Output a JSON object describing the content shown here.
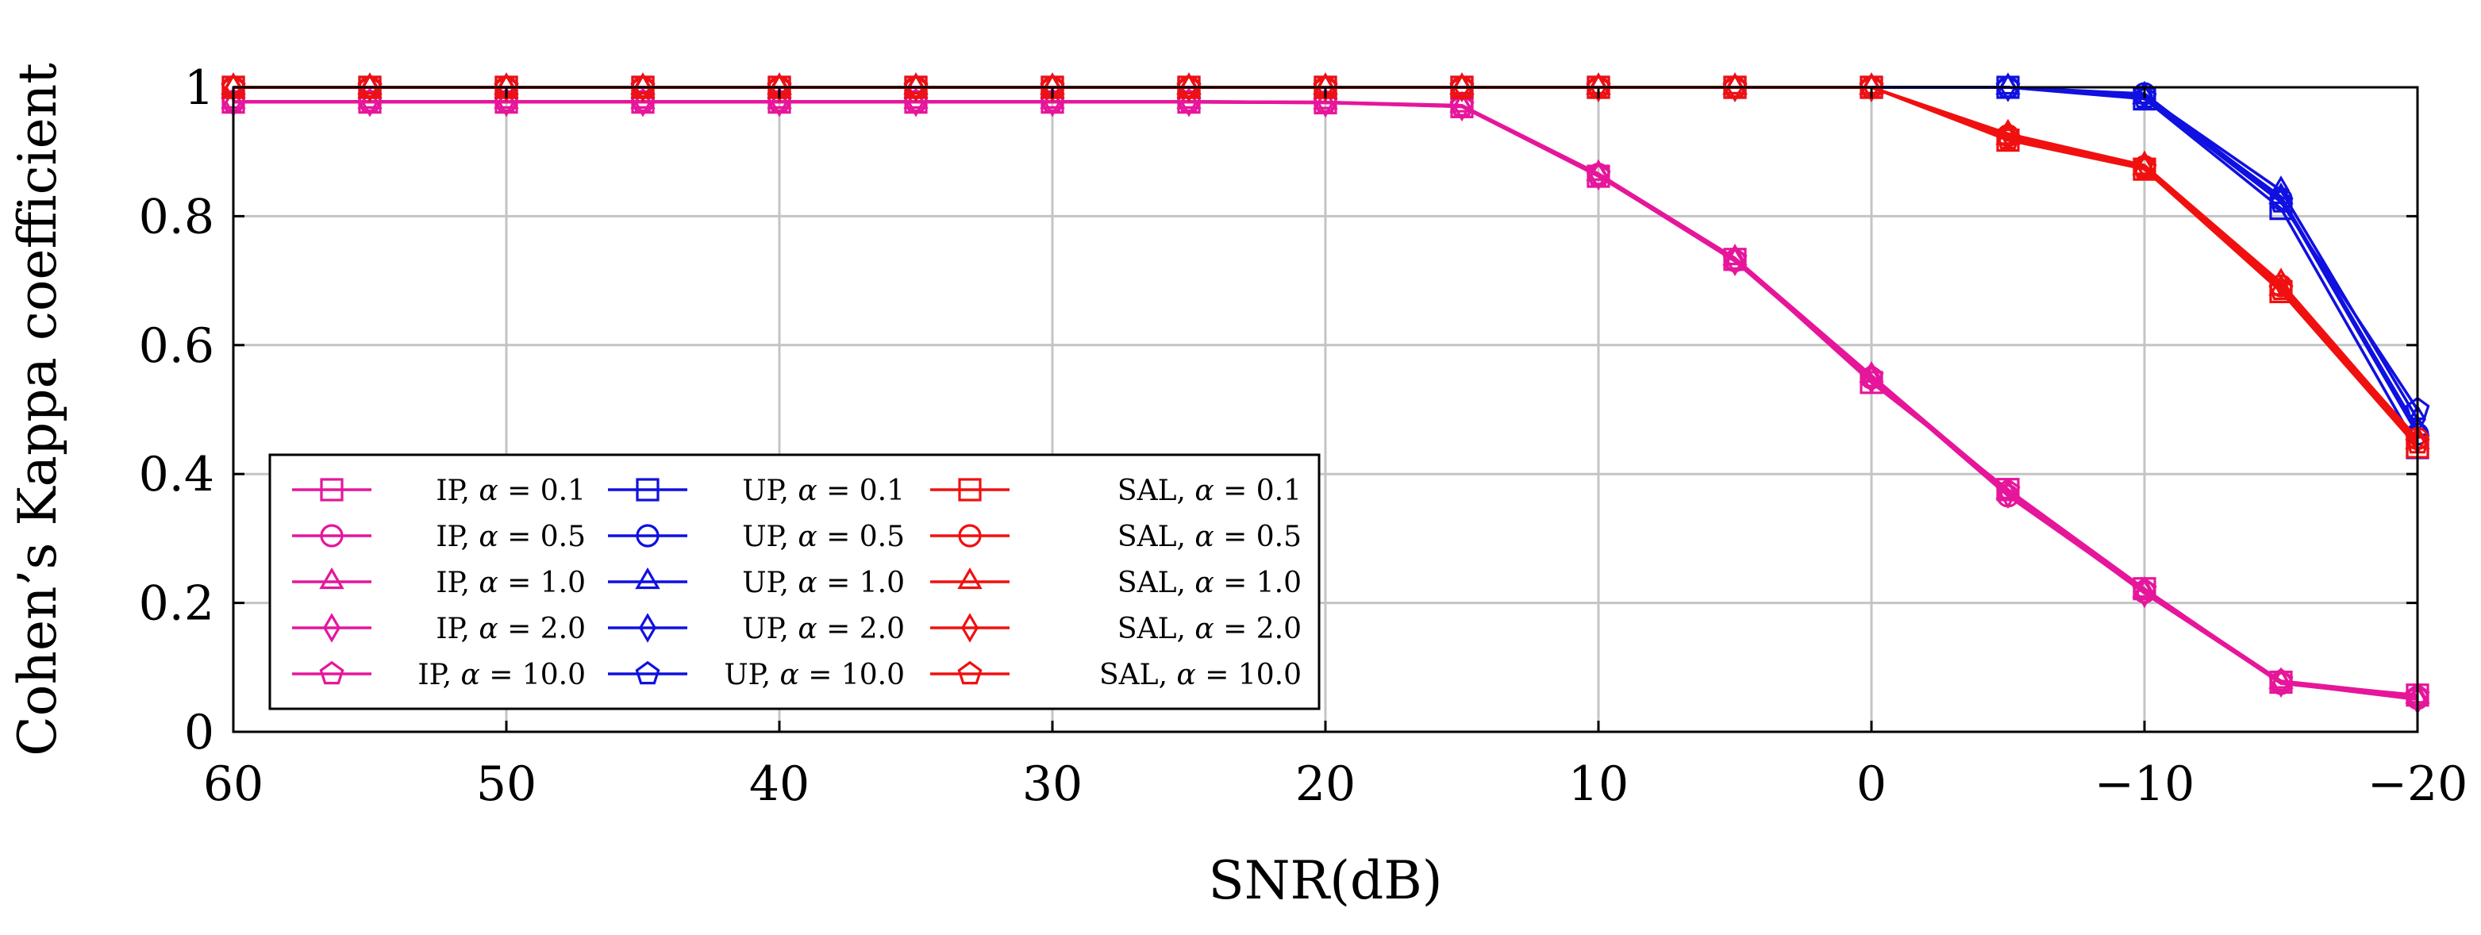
{
  "chart_data": {
    "type": "line",
    "title": "",
    "xlabel": "SNR(dB)",
    "ylabel": "Cohen’s Kappa coefficient",
    "xlim": [
      60,
      -20
    ],
    "ylim": [
      0,
      1
    ],
    "grid": true,
    "legend_position": "bottom-left",
    "x": [
      60,
      55,
      50,
      45,
      40,
      35,
      30,
      25,
      20,
      15,
      10,
      5,
      0,
      -5,
      -10,
      -15,
      -20
    ],
    "x_ticks": [
      60,
      50,
      40,
      30,
      20,
      10,
      0,
      -10,
      -20
    ],
    "x_tick_labels": [
      "60",
      "50",
      "40",
      "30",
      "20",
      "10",
      "0",
      "−10",
      "−20"
    ],
    "y_ticks": [
      0,
      0.2,
      0.4,
      0.6,
      0.8,
      1
    ],
    "y_tick_labels": [
      "0",
      "0.2",
      "0.4",
      "0.6",
      "0.8",
      "1"
    ],
    "colors": {
      "IP": "#e6169b",
      "UP": "#1010e0",
      "SAL": "#f01010"
    },
    "series": [
      {
        "group": "IP",
        "marker": "square",
        "alpha": "0.1",
        "name_prefix": "IP, ",
        "name_symbol": "α",
        "name_suffix": " = 0.1",
        "values": [
          0.977,
          0.977,
          0.977,
          0.977,
          0.977,
          0.977,
          0.977,
          0.977,
          0.976,
          0.97,
          0.862,
          0.733,
          0.542,
          0.376,
          0.222,
          0.077,
          0.057
        ]
      },
      {
        "group": "IP",
        "marker": "circle",
        "alpha": "0.5",
        "name_prefix": "IP, ",
        "name_symbol": "α",
        "name_suffix": " = 0.5",
        "values": [
          0.978,
          0.978,
          0.978,
          0.978,
          0.978,
          0.978,
          0.978,
          0.978,
          0.977,
          0.971,
          0.865,
          0.731,
          0.549,
          0.366,
          0.217,
          0.075,
          0.052
        ]
      },
      {
        "group": "IP",
        "marker": "triangle",
        "alpha": "1.0",
        "name_prefix": "IP, ",
        "name_symbol": "α",
        "name_suffix": " = 1.0",
        "values": [
          0.978,
          0.978,
          0.978,
          0.978,
          0.978,
          0.978,
          0.978,
          0.978,
          0.977,
          0.972,
          0.866,
          0.735,
          0.553,
          0.372,
          0.219,
          0.078,
          0.055
        ]
      },
      {
        "group": "IP",
        "marker": "diamond",
        "alpha": "2.0",
        "name_prefix": "IP, ",
        "name_symbol": "α",
        "name_suffix": " = 2.0",
        "values": [
          0.977,
          0.977,
          0.977,
          0.977,
          0.977,
          0.977,
          0.977,
          0.977,
          0.976,
          0.97,
          0.863,
          0.73,
          0.547,
          0.369,
          0.215,
          0.076,
          0.05
        ]
      },
      {
        "group": "IP",
        "marker": "pentagon",
        "alpha": "10.0",
        "name_prefix": "IP, ",
        "name_symbol": "α",
        "name_suffix": " = 10.0",
        "values": [
          0.978,
          0.978,
          0.978,
          0.978,
          0.978,
          0.978,
          0.978,
          0.978,
          0.977,
          0.971,
          0.864,
          0.733,
          0.551,
          0.374,
          0.22,
          0.079,
          0.056
        ]
      },
      {
        "group": "UP",
        "marker": "square",
        "alpha": "0.1",
        "name_prefix": "UP, ",
        "name_symbol": "α",
        "name_suffix": " = 0.1",
        "values": [
          1,
          1,
          1,
          1,
          1,
          1,
          1,
          1,
          1,
          1,
          1,
          1,
          1,
          1,
          0.982,
          0.812,
          0.441
        ]
      },
      {
        "group": "UP",
        "marker": "circle",
        "alpha": "0.5",
        "name_prefix": "UP, ",
        "name_symbol": "α",
        "name_suffix": " = 0.5",
        "values": [
          1,
          1,
          1,
          1,
          1,
          1,
          1,
          1,
          1,
          1,
          1,
          1,
          1,
          1,
          0.99,
          0.827,
          0.462
        ]
      },
      {
        "group": "UP",
        "marker": "triangle",
        "alpha": "1.0",
        "name_prefix": "UP, ",
        "name_symbol": "α",
        "name_suffix": " = 1.0",
        "values": [
          1,
          1,
          1,
          1,
          1,
          1,
          1,
          1,
          1,
          1,
          1,
          1,
          1,
          1,
          0.985,
          0.83,
          0.47
        ]
      },
      {
        "group": "UP",
        "marker": "diamond",
        "alpha": "2.0",
        "name_prefix": "UP, ",
        "name_symbol": "α",
        "name_suffix": " = 2.0",
        "values": [
          1,
          1,
          1,
          1,
          1,
          1,
          1,
          1,
          1,
          1,
          1,
          1,
          1,
          1,
          0.987,
          0.84,
          0.485
        ]
      },
      {
        "group": "UP",
        "marker": "pentagon",
        "alpha": "10.0",
        "name_prefix": "UP, ",
        "name_symbol": "α",
        "name_suffix": " = 10.0",
        "values": [
          1,
          1,
          1,
          1,
          1,
          1,
          1,
          1,
          1,
          1,
          1,
          1,
          1,
          1,
          0.984,
          0.822,
          0.5
        ]
      },
      {
        "group": "SAL",
        "marker": "square",
        "alpha": "0.1",
        "name_prefix": "SAL, ",
        "name_symbol": "α",
        "name_suffix": " = 0.1",
        "values": [
          1,
          1,
          1,
          1,
          1,
          1,
          1,
          1,
          1,
          1,
          1,
          1,
          1,
          0.918,
          0.873,
          0.683,
          0.442
        ]
      },
      {
        "group": "SAL",
        "marker": "circle",
        "alpha": "0.5",
        "name_prefix": "SAL, ",
        "name_symbol": "α",
        "name_suffix": " = 0.5",
        "values": [
          1,
          1,
          1,
          1,
          1,
          1,
          1,
          1,
          1,
          1,
          1,
          1,
          1,
          0.925,
          0.877,
          0.692,
          0.455
        ]
      },
      {
        "group": "SAL",
        "marker": "triangle",
        "alpha": "1.0",
        "name_prefix": "SAL, ",
        "name_symbol": "α",
        "name_suffix": " = 1.0",
        "values": [
          1,
          1,
          1,
          1,
          1,
          1,
          1,
          1,
          1,
          1,
          1,
          1,
          1,
          0.922,
          0.875,
          0.688,
          0.45
        ]
      },
      {
        "group": "SAL",
        "marker": "diamond",
        "alpha": "2.0",
        "name_prefix": "SAL, ",
        "name_symbol": "α",
        "name_suffix": " = 2.0",
        "values": [
          1,
          1,
          1,
          1,
          1,
          1,
          1,
          1,
          1,
          1,
          1,
          1,
          1,
          0.928,
          0.879,
          0.697,
          0.453
        ]
      },
      {
        "group": "SAL",
        "marker": "pentagon",
        "alpha": "10.0",
        "name_prefix": "SAL, ",
        "name_symbol": "α",
        "name_suffix": " = 10.0",
        "values": [
          1,
          1,
          1,
          1,
          1,
          1,
          1,
          1,
          1,
          1,
          1,
          1,
          1,
          0.92,
          0.874,
          0.686,
          0.448
        ]
      }
    ]
  }
}
